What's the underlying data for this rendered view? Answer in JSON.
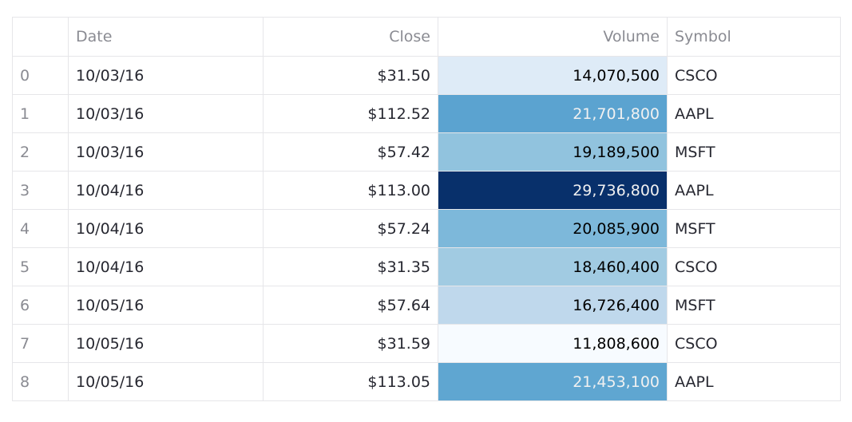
{
  "table": {
    "headers": {
      "index": "",
      "date": "Date",
      "close": "Close",
      "volume": "Volume",
      "symbol": "Symbol"
    },
    "rows": [
      {
        "index": "0",
        "date": "10/03/16",
        "close": "$31.50",
        "volume": "14,070,500",
        "symbol": "CSCO",
        "volume_bg": "#deebf7",
        "volume_color": "#000000"
      },
      {
        "index": "1",
        "date": "10/03/16",
        "close": "$112.52",
        "volume": "21,701,800",
        "symbol": "AAPL",
        "volume_bg": "#5ba3d0",
        "volume_color": "#f1f1f1"
      },
      {
        "index": "2",
        "date": "10/03/16",
        "close": "$57.42",
        "volume": "19,189,500",
        "symbol": "MSFT",
        "volume_bg": "#91c3de",
        "volume_color": "#000000"
      },
      {
        "index": "3",
        "date": "10/04/16",
        "close": "$113.00",
        "volume": "29,736,800",
        "symbol": "AAPL",
        "volume_bg": "#08306b",
        "volume_color": "#f1f1f1"
      },
      {
        "index": "4",
        "date": "10/04/16",
        "close": "$57.24",
        "volume": "20,085,900",
        "symbol": "MSFT",
        "volume_bg": "#7db8da",
        "volume_color": "#000000"
      },
      {
        "index": "5",
        "date": "10/04/16",
        "close": "$31.35",
        "volume": "18,460,400",
        "symbol": "CSCO",
        "volume_bg": "#a1cbe2",
        "volume_color": "#000000"
      },
      {
        "index": "6",
        "date": "10/05/16",
        "close": "$57.64",
        "volume": "16,726,400",
        "symbol": "MSFT",
        "volume_bg": "#bfd8ec",
        "volume_color": "#000000"
      },
      {
        "index": "7",
        "date": "10/05/16",
        "close": "$31.59",
        "volume": "11,808,600",
        "symbol": "CSCO",
        "volume_bg": "#f7fbff",
        "volume_color": "#000000"
      },
      {
        "index": "8",
        "date": "10/05/16",
        "close": "$113.05",
        "volume": "21,453,100",
        "symbol": "AAPL",
        "volume_bg": "#5fa6d1",
        "volume_color": "#f1f1f1"
      }
    ]
  }
}
